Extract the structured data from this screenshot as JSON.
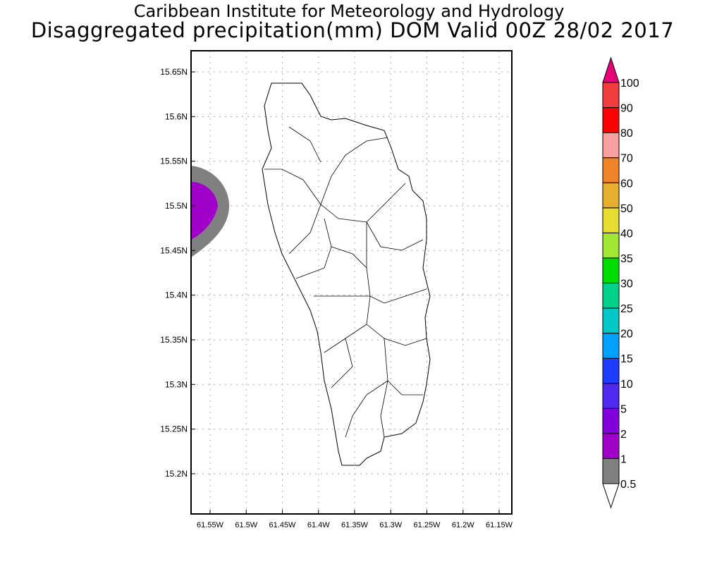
{
  "title": {
    "line1": "Caribbean Institute for Meteorology and Hydrology",
    "line2": "Disaggregated precipitation(mm) DOM Valid 00Z 28/02 2017"
  },
  "map": {
    "lat_ticks": [
      "15.65N",
      "15.6N",
      "15.55N",
      "15.5N",
      "15.45N",
      "15.4N",
      "15.35N",
      "15.3N",
      "15.25N",
      "15.2N"
    ],
    "lon_ticks": [
      "61.55W",
      "61.5W",
      "61.45W",
      "61.4W",
      "61.35W",
      "61.3W",
      "61.25W",
      "61.2W",
      "61.15W"
    ],
    "precip_field": [
      {
        "range": "0.5-1",
        "color": "#808080"
      },
      {
        "range": "1-2",
        "color": "#a000c8"
      }
    ]
  },
  "colorbar": {
    "labels": [
      "0.5",
      "1",
      "2",
      "5",
      "10",
      "15",
      "20",
      "25",
      "30",
      "35",
      "40",
      "50",
      "60",
      "70",
      "80",
      "90",
      "100"
    ],
    "colors": [
      "#808080",
      "#a000c8",
      "#8200dc",
      "#5028f0",
      "#1e3cff",
      "#00a0ff",
      "#00c8c8",
      "#00d28c",
      "#00dc00",
      "#a0e632",
      "#e6dc32",
      "#e6af2d",
      "#f08228",
      "#faa0a0",
      "#ff0000",
      "#f03c3c"
    ],
    "over_color": "#e6007a",
    "under_color": "#ffffff"
  }
}
